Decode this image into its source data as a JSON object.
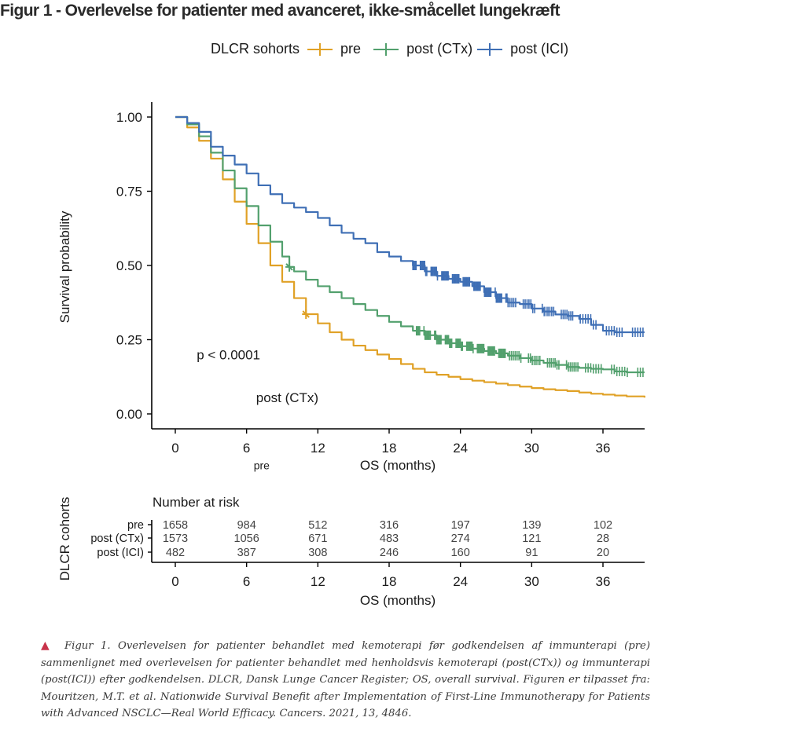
{
  "page": {
    "title": "Figur 1 - Overlevelse for patienter med avanceret, ikke-småcellet lungekræft",
    "caption_marker": "▲",
    "caption": "Figur 1. Overlevelsen for patienter behandlet med kemoterapi før godkendelsen af immunterapi (pre) sammenlignet med overlevelsen for patienter behandlet med henholdsvis kemoterapi (post(CTx)) og immunterapi (post(ICI)) efter godkendelsen. DLCR, Dansk Lunge Cancer Register; OS, overall survival. Figuren er tilpasset fra: Mouritzen, M.T. et al. Nationwide Survival Benefit after Implementation of First-Line Immunotherapy for Patients with Advanced NSCLC—Real World Efficacy. Cancers. 2021, 13, 4846."
  },
  "chart_data": [
    {
      "type": "line",
      "subtype": "kaplan-meier",
      "title": "",
      "xlabel": "OS (months)",
      "ylabel": "Survival probability",
      "xlim": [
        -2,
        39.5
      ],
      "ylim": [
        -0.05,
        1.0
      ],
      "xticks": [
        0,
        6,
        12,
        18,
        24,
        30,
        36
      ],
      "yticks": [
        0.0,
        0.25,
        0.5,
        0.75,
        1.0
      ],
      "ytick_labels": [
        "0.00",
        "0.25",
        "0.50",
        "0.75",
        "1.00"
      ],
      "grid": false,
      "legend": {
        "title": "DLCR sohorts",
        "placement": "top",
        "entries": [
          "pre",
          "post (CTx)",
          "post (ICI)"
        ]
      },
      "annotations": [
        {
          "text": "p < 0.0001",
          "x": 1.8,
          "y": 0.2
        },
        {
          "text": "post (CTx)",
          "x": 6.8,
          "y": 0.055
        },
        {
          "text": "pre",
          "x": 6.6,
          "y": -0.17
        }
      ],
      "series": [
        {
          "name": "pre",
          "color": "#e0a126",
          "x": [
            0,
            1,
            2,
            3,
            4,
            5,
            6,
            7,
            8,
            9,
            10,
            11,
            12,
            13,
            14,
            15,
            16,
            17,
            18,
            19,
            20,
            21,
            22,
            23,
            24,
            25,
            26,
            27,
            28,
            29,
            30,
            31,
            32,
            33,
            34,
            35,
            36,
            37,
            38,
            39.5
          ],
          "y": [
            1.0,
            0.965,
            0.92,
            0.86,
            0.79,
            0.715,
            0.64,
            0.575,
            0.5,
            0.445,
            0.39,
            0.336,
            0.305,
            0.275,
            0.25,
            0.23,
            0.215,
            0.2,
            0.185,
            0.168,
            0.152,
            0.14,
            0.132,
            0.125,
            0.117,
            0.112,
            0.107,
            0.102,
            0.097,
            0.092,
            0.087,
            0.083,
            0.08,
            0.077,
            0.072,
            0.068,
            0.065,
            0.062,
            0.059,
            0.055
          ],
          "censor_marks": [
            {
              "x": 11.0,
              "y": 0.336
            }
          ]
        },
        {
          "name": "post (CTx)",
          "color": "#52a06d",
          "x": [
            0,
            1,
            2,
            3,
            4,
            5,
            6,
            7,
            8,
            9,
            9.6,
            10,
            11,
            12,
            13,
            14,
            15,
            16,
            17,
            18,
            19,
            20,
            21,
            22,
            23,
            24,
            25,
            26,
            27,
            28,
            29,
            30,
            31,
            32,
            33,
            34,
            35,
            36,
            37,
            38,
            39.5
          ],
          "y": [
            1.0,
            0.975,
            0.935,
            0.88,
            0.82,
            0.76,
            0.7,
            0.635,
            0.58,
            0.53,
            0.495,
            0.48,
            0.452,
            0.43,
            0.41,
            0.39,
            0.37,
            0.35,
            0.33,
            0.31,
            0.295,
            0.28,
            0.265,
            0.25,
            0.238,
            0.228,
            0.22,
            0.212,
            0.204,
            0.196,
            0.188,
            0.18,
            0.172,
            0.165,
            0.158,
            0.155,
            0.152,
            0.15,
            0.143,
            0.14,
            0.14
          ],
          "censor_marks": [
            {
              "x": 9.6,
              "y": 0.495
            }
          ],
          "dense_censoring_from_month": 20.3
        },
        {
          "name": "post (ICI)",
          "color": "#3f6fb5",
          "x": [
            0,
            1,
            2,
            3,
            4,
            5,
            6,
            7,
            8,
            9,
            10,
            11,
            12,
            13,
            14,
            15,
            16,
            17,
            18,
            19,
            20,
            21,
            22,
            23,
            24,
            25,
            26,
            27,
            28,
            29,
            30,
            31,
            32,
            33,
            34,
            35,
            36,
            37,
            38,
            39.5
          ],
          "y": [
            1.0,
            0.98,
            0.95,
            0.9,
            0.87,
            0.84,
            0.81,
            0.77,
            0.74,
            0.71,
            0.695,
            0.68,
            0.66,
            0.635,
            0.61,
            0.59,
            0.575,
            0.545,
            0.53,
            0.515,
            0.5,
            0.48,
            0.465,
            0.455,
            0.445,
            0.43,
            0.41,
            0.39,
            0.375,
            0.37,
            0.355,
            0.345,
            0.335,
            0.33,
            0.32,
            0.3,
            0.28,
            0.275,
            0.275,
            0.275
          ],
          "censor_marks": [],
          "dense_censoring_from_month": 20.0
        }
      ]
    },
    {
      "type": "table",
      "title": "Number at risk",
      "ylabel": "DLCR cohorts",
      "xlabel": "OS (months)",
      "xticks": [
        0,
        6,
        12,
        18,
        24,
        30,
        36
      ],
      "columns": [
        0,
        6,
        12,
        18,
        24,
        30,
        36
      ],
      "rows": [
        {
          "label": "pre",
          "values": [
            1658,
            984,
            512,
            316,
            197,
            139,
            102
          ]
        },
        {
          "label": "post (CTx)",
          "values": [
            1573,
            1056,
            671,
            483,
            274,
            121,
            28
          ]
        },
        {
          "label": "post (ICI)",
          "values": [
            482,
            387,
            308,
            246,
            160,
            91,
            20
          ]
        }
      ]
    }
  ]
}
